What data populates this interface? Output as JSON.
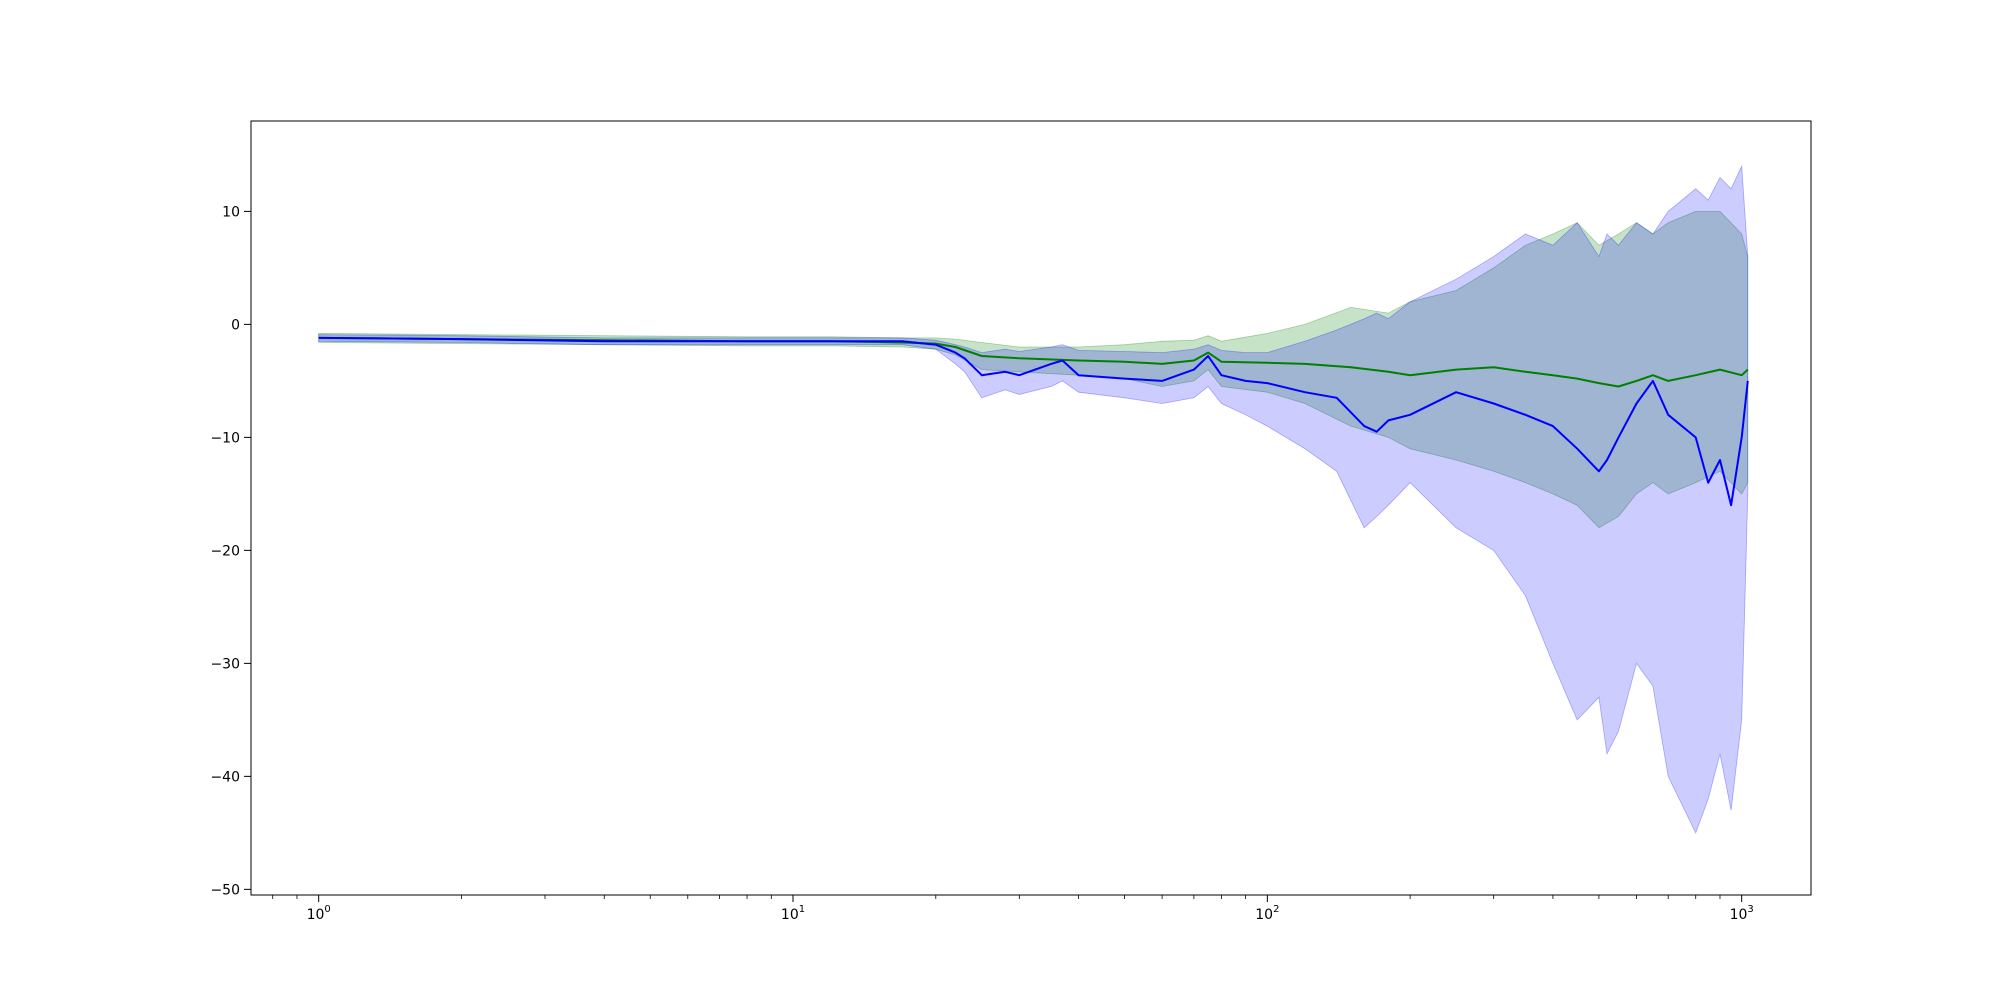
{
  "chart_data": {
    "type": "line",
    "title": "",
    "xlabel": "",
    "ylabel": "",
    "x_scale": "log",
    "xlim": [
      0.72,
      1400
    ],
    "ylim": [
      -50.5,
      18
    ],
    "grid": false,
    "legend": "none",
    "x_ticks": [
      {
        "value": 1,
        "label": "10^0",
        "base": "10",
        "exp": "0"
      },
      {
        "value": 10,
        "label": "10^1",
        "base": "10",
        "exp": "1"
      },
      {
        "value": 100,
        "label": "10^2",
        "base": "10",
        "exp": "2"
      },
      {
        "value": 1000,
        "label": "10^3",
        "base": "10",
        "exp": "3"
      }
    ],
    "y_ticks": [
      {
        "value": 10,
        "label": "10"
      },
      {
        "value": 0,
        "label": "0"
      },
      {
        "value": -10,
        "label": "−10"
      },
      {
        "value": -20,
        "label": "−20"
      },
      {
        "value": -30,
        "label": "−30"
      },
      {
        "value": -40,
        "label": "−40"
      },
      {
        "value": -50,
        "label": "−50"
      }
    ],
    "series": [
      {
        "color": "#008000",
        "band_color": "#008000",
        "band_opacity": 0.22,
        "x": [
          1,
          2,
          4,
          8,
          12,
          17,
          20,
          22,
          25,
          30,
          40,
          50,
          60,
          70,
          75,
          80,
          100,
          120,
          150,
          180,
          200,
          250,
          300,
          350,
          400,
          450,
          500,
          550,
          600,
          650,
          700,
          800,
          900,
          1000,
          1030
        ],
        "y": [
          -1.2,
          -1.3,
          -1.4,
          -1.5,
          -1.5,
          -1.6,
          -1.7,
          -2.0,
          -2.8,
          -3.0,
          -3.2,
          -3.3,
          -3.5,
          -3.2,
          -2.5,
          -3.3,
          -3.4,
          -3.5,
          -3.8,
          -4.2,
          -4.5,
          -4.0,
          -3.8,
          -4.2,
          -4.5,
          -4.8,
          -5.2,
          -5.5,
          -5.0,
          -4.5,
          -5.0,
          -4.5,
          -4.0,
          -4.5,
          -4.0
        ],
        "upper": [
          -0.8,
          -0.9,
          -1.0,
          -1.1,
          -1.1,
          -1.2,
          -1.2,
          -1.3,
          -1.6,
          -2.0,
          -2.0,
          -1.8,
          -1.5,
          -1.4,
          -1.0,
          -1.5,
          -0.8,
          0.0,
          1.5,
          1.0,
          2.0,
          3.0,
          5.0,
          7.0,
          8.0,
          9.0,
          7.0,
          8.0,
          9.0,
          8.0,
          9.0,
          10.0,
          10.0,
          8.0,
          6.0
        ],
        "lower": [
          -1.6,
          -1.7,
          -1.8,
          -1.9,
          -1.9,
          -2.0,
          -2.2,
          -2.7,
          -4.0,
          -4.2,
          -4.5,
          -4.8,
          -5.5,
          -5.0,
          -4.0,
          -5.5,
          -6.0,
          -7.0,
          -9.0,
          -10.0,
          -11.0,
          -12.0,
          -13.0,
          -14.0,
          -15.0,
          -16.0,
          -18.0,
          -17.0,
          -15.0,
          -14.0,
          -15.0,
          -14.0,
          -13.0,
          -15.0,
          -14.0
        ]
      },
      {
        "color": "#0000ff",
        "band_color": "#0000ff",
        "band_opacity": 0.2,
        "x": [
          1,
          2,
          4,
          8,
          12,
          17,
          20,
          22,
          23,
          25,
          28,
          30,
          35,
          37,
          40,
          50,
          60,
          70,
          75,
          80,
          90,
          100,
          120,
          140,
          160,
          170,
          180,
          200,
          250,
          300,
          350,
          400,
          450,
          500,
          520,
          550,
          600,
          650,
          700,
          800,
          850,
          900,
          950,
          1000,
          1030
        ],
        "y": [
          -1.2,
          -1.3,
          -1.5,
          -1.5,
          -1.5,
          -1.5,
          -1.8,
          -2.5,
          -3.0,
          -4.5,
          -4.2,
          -4.5,
          -3.5,
          -3.2,
          -4.5,
          -4.8,
          -5.0,
          -4.0,
          -2.8,
          -4.5,
          -5.0,
          -5.2,
          -6.0,
          -6.5,
          -9.0,
          -9.5,
          -8.5,
          -8.0,
          -6.0,
          -7.0,
          -8.0,
          -9.0,
          -11.0,
          -13.0,
          -12.0,
          -10.0,
          -7.0,
          -5.0,
          -8.0,
          -10.0,
          -14.0,
          -12.0,
          -16.0,
          -10.0,
          -5.0
        ],
        "upper": [
          -0.9,
          -1.0,
          -1.2,
          -1.2,
          -1.2,
          -1.2,
          -1.4,
          -1.8,
          -2.0,
          -2.5,
          -2.2,
          -2.4,
          -2.0,
          -1.8,
          -2.3,
          -2.4,
          -2.5,
          -2.2,
          -1.8,
          -2.3,
          -2.5,
          -2.5,
          -1.5,
          -0.5,
          0.5,
          1.0,
          0.5,
          2.0,
          4.0,
          6.0,
          8.0,
          7.0,
          9.0,
          6.0,
          8.0,
          7.0,
          9.0,
          8.0,
          10.0,
          12.0,
          11.0,
          13.0,
          12.0,
          14.0,
          6.0
        ],
        "lower": [
          -1.5,
          -1.6,
          -1.8,
          -1.8,
          -1.8,
          -1.8,
          -2.2,
          -3.5,
          -4.2,
          -6.5,
          -5.8,
          -6.2,
          -5.5,
          -5.0,
          -6.0,
          -6.5,
          -7.0,
          -6.5,
          -5.5,
          -7.0,
          -8.0,
          -9.0,
          -11.0,
          -13.0,
          -18.0,
          -17.0,
          -16.0,
          -14.0,
          -18.0,
          -20.0,
          -24.0,
          -30.0,
          -35.0,
          -33.0,
          -38.0,
          -36.0,
          -30.0,
          -32.0,
          -40.0,
          -45.0,
          -42.0,
          -38.0,
          -43.0,
          -35.0,
          -15.0
        ]
      }
    ]
  }
}
